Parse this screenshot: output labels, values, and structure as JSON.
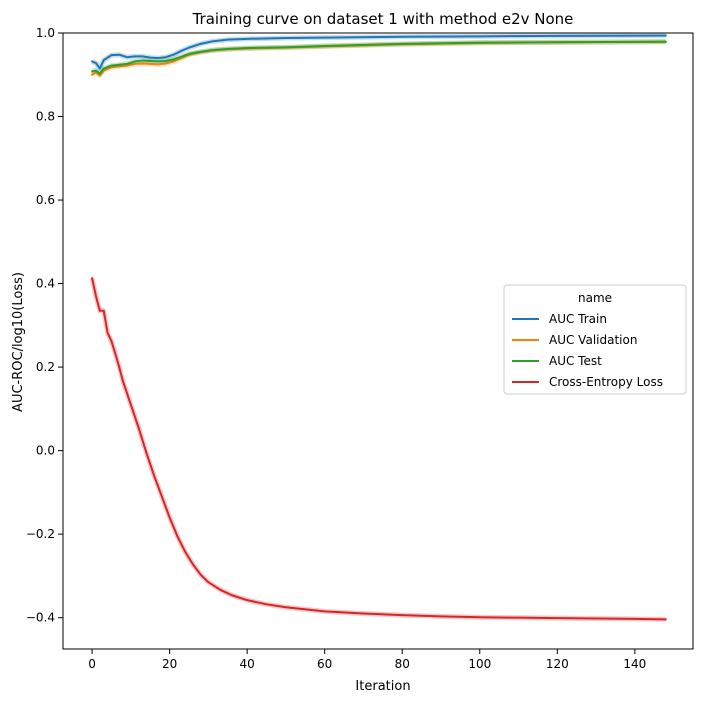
{
  "chart_data": {
    "type": "line",
    "title": "Training curve on dataset 1 with method e2v None",
    "xlabel": "Iteration",
    "ylabel": "AUC-ROC/log10(Loss)",
    "xlim": [
      -7.5,
      155
    ],
    "ylim": [
      -0.475,
      1.0
    ],
    "xticks": [
      0,
      20,
      40,
      60,
      80,
      100,
      120,
      140
    ],
    "yticks": [
      -0.4,
      -0.2,
      0.0,
      0.2,
      0.4,
      0.6,
      0.8,
      1.0
    ],
    "ytick_labels": [
      "−0.4",
      "−0.2",
      "0.0",
      "0.2",
      "0.4",
      "0.6",
      "0.8",
      "1.0"
    ],
    "grid": false,
    "legend": {
      "title": "name",
      "position": "center-right"
    },
    "series": [
      {
        "name": "AUC Train",
        "color": "#1f77b4",
        "x": [
          0,
          1,
          2,
          3,
          5,
          7,
          9,
          11,
          13,
          15,
          17,
          19,
          21,
          23,
          25,
          28,
          31,
          35,
          40,
          50,
          60,
          80,
          100,
          120,
          148
        ],
        "y": [
          0.932,
          0.928,
          0.915,
          0.935,
          0.947,
          0.948,
          0.942,
          0.944,
          0.944,
          0.941,
          0.94,
          0.942,
          0.948,
          0.957,
          0.965,
          0.974,
          0.98,
          0.984,
          0.986,
          0.988,
          0.989,
          0.991,
          0.992,
          0.993,
          0.994
        ]
      },
      {
        "name": "AUC Validation",
        "color": "#ff7f0e",
        "x": [
          0,
          1,
          2,
          3,
          5,
          7,
          9,
          11,
          13,
          15,
          17,
          19,
          21,
          23,
          25,
          28,
          31,
          35,
          40,
          50,
          60,
          80,
          100,
          120,
          148
        ],
        "y": [
          0.9,
          0.906,
          0.898,
          0.91,
          0.918,
          0.92,
          0.922,
          0.926,
          0.927,
          0.926,
          0.925,
          0.927,
          0.932,
          0.94,
          0.948,
          0.954,
          0.958,
          0.961,
          0.963,
          0.965,
          0.968,
          0.973,
          0.976,
          0.978,
          0.979
        ]
      },
      {
        "name": "AUC Test",
        "color": "#2ca02c",
        "x": [
          0,
          1,
          2,
          3,
          5,
          7,
          9,
          11,
          13,
          15,
          17,
          19,
          21,
          23,
          25,
          28,
          31,
          35,
          40,
          50,
          60,
          80,
          100,
          120,
          148
        ],
        "y": [
          0.908,
          0.91,
          0.903,
          0.915,
          0.922,
          0.924,
          0.926,
          0.932,
          0.934,
          0.933,
          0.932,
          0.933,
          0.937,
          0.943,
          0.95,
          0.955,
          0.959,
          0.962,
          0.964,
          0.966,
          0.969,
          0.974,
          0.977,
          0.978,
          0.979
        ]
      },
      {
        "name": "Cross-Entropy Loss",
        "color": "#d62728",
        "x": [
          0,
          1,
          2,
          3,
          4,
          5,
          6,
          7,
          8,
          10,
          12,
          14,
          16,
          18,
          20,
          22,
          24,
          26,
          28,
          30,
          33,
          36,
          40,
          45,
          50,
          60,
          70,
          80,
          90,
          100,
          110,
          120,
          130,
          140,
          148
        ],
        "y": [
          0.413,
          0.37,
          0.335,
          0.335,
          0.282,
          0.262,
          0.232,
          0.2,
          0.165,
          0.11,
          0.055,
          -0.005,
          -0.06,
          -0.11,
          -0.16,
          -0.205,
          -0.242,
          -0.272,
          -0.297,
          -0.315,
          -0.333,
          -0.346,
          -0.358,
          -0.368,
          -0.375,
          -0.385,
          -0.39,
          -0.394,
          -0.397,
          -0.399,
          -0.4,
          -0.401,
          -0.402,
          -0.403,
          -0.404
        ]
      }
    ]
  }
}
